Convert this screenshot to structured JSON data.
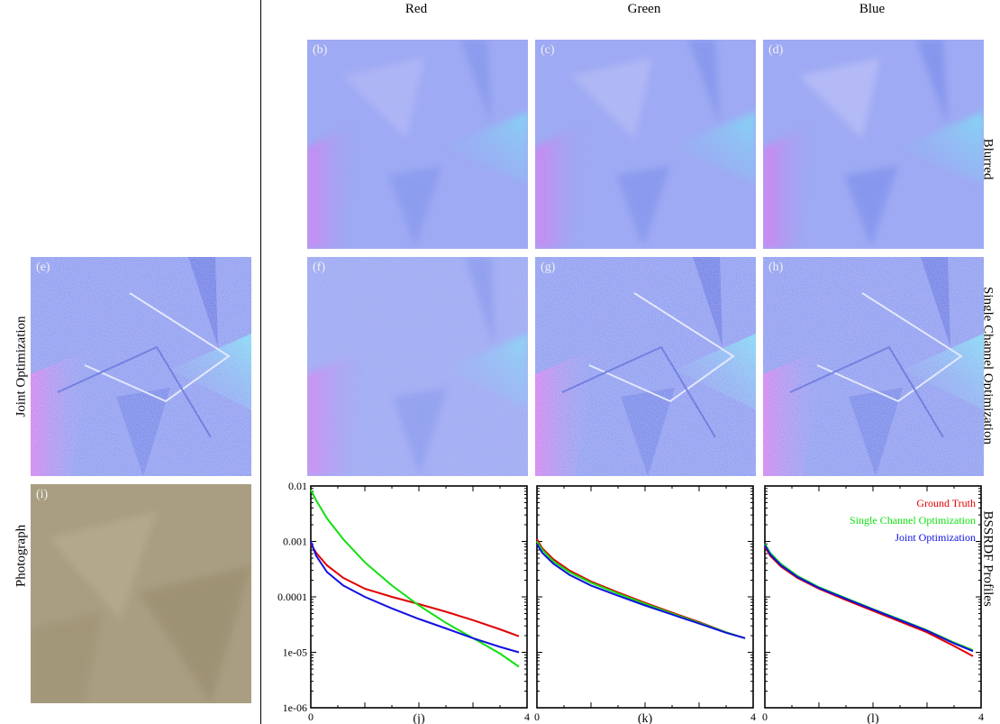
{
  "columns": {
    "red": "Red",
    "green": "Green",
    "blue": "Blue"
  },
  "rows": {
    "blurred": "Blurred",
    "single": "Single Channel Optimization",
    "profiles": "BSSRDF Profiles",
    "joint": "Joint Optimization",
    "photograph": "Photograph"
  },
  "panel_tags": {
    "b": "(b)",
    "c": "(c)",
    "d": "(d)",
    "e": "(e)",
    "f": "(f)",
    "g": "(g)",
    "h": "(h)",
    "i": "(i)",
    "j": "(j)",
    "k": "(k)",
    "l": "(l)"
  },
  "colors": {
    "ground_truth": "#e00000",
    "single": "#10e010",
    "joint": "#1010e0",
    "normal_base": "#9aa8f2",
    "photo_base": "#a89c80"
  },
  "legend": {
    "ground_truth": "Ground Truth",
    "single": "Single Channel Optimization",
    "joint": "Joint Optimization"
  },
  "chart_data": [
    {
      "type": "line",
      "panel": "(j)",
      "yscale": "log",
      "xlim": [
        0,
        4
      ],
      "ylim": [
        1e-06,
        0.01
      ],
      "xticks": [
        "0",
        "4"
      ],
      "yticks": [
        "0.01",
        "0.001",
        "0.0001",
        "1e-05",
        "1e-06"
      ],
      "series": [
        {
          "name": "Ground Truth",
          "color": "#e00000",
          "x": [
            0,
            0.1,
            0.3,
            0.6,
            1.0,
            1.5,
            2.0,
            2.5,
            3.0,
            3.5,
            3.85
          ],
          "y": [
            0.0009,
            0.00062,
            0.00037,
            0.00022,
            0.00014,
            0.0001,
            7.4e-05,
            5.4e-05,
            3.8e-05,
            2.6e-05,
            1.95e-05
          ]
        },
        {
          "name": "Single Channel Optimization",
          "color": "#10e010",
          "x": [
            0,
            0.1,
            0.3,
            0.6,
            1.0,
            1.5,
            2.0,
            2.5,
            3.0,
            3.5,
            3.85
          ],
          "y": [
            0.0085,
            0.0055,
            0.0026,
            0.0011,
            0.00042,
            0.00016,
            7e-05,
            3.4e-05,
            1.8e-05,
            9.5e-06,
            5.5e-06
          ]
        },
        {
          "name": "Joint Optimization",
          "color": "#1010e0",
          "x": [
            0,
            0.1,
            0.3,
            0.6,
            1.0,
            1.5,
            2.0,
            2.5,
            3.0,
            3.5,
            3.85
          ],
          "y": [
            0.001,
            0.00055,
            0.00028,
            0.00016,
            0.0001,
            6.2e-05,
            4e-05,
            2.7e-05,
            1.8e-05,
            1.25e-05,
            1e-05
          ]
        }
      ]
    },
    {
      "type": "line",
      "panel": "(k)",
      "yscale": "log",
      "xlim": [
        0,
        4
      ],
      "ylim": [
        1e-06,
        0.01
      ],
      "xticks": [
        "0",
        "4"
      ],
      "yticks": [],
      "series": [
        {
          "name": "Ground Truth",
          "color": "#e00000",
          "x": [
            0,
            0.1,
            0.3,
            0.6,
            1.0,
            1.5,
            2.0,
            2.5,
            3.0,
            3.5,
            3.85
          ],
          "y": [
            0.0011,
            0.00075,
            0.00048,
            0.0003,
            0.00019,
            0.00012,
            7.8e-05,
            5.2e-05,
            3.5e-05,
            2.3e-05,
            1.8e-05
          ]
        },
        {
          "name": "Single Channel Optimization",
          "color": "#10e010",
          "x": [
            0,
            0.1,
            0.3,
            0.6,
            1.0,
            1.5,
            2.0,
            2.5,
            3.0,
            3.5,
            3.85
          ],
          "y": [
            0.001,
            0.0007,
            0.00044,
            0.00028,
            0.00018,
            0.000115,
            7.5e-05,
            5e-05,
            3.4e-05,
            2.3e-05,
            1.8e-05
          ]
        },
        {
          "name": "Joint Optimization",
          "color": "#1010e0",
          "x": [
            0,
            0.1,
            0.3,
            0.6,
            1.0,
            1.5,
            2.0,
            2.5,
            3.0,
            3.5,
            3.85
          ],
          "y": [
            0.0009,
            0.00062,
            0.0004,
            0.00025,
            0.00016,
            0.000105,
            7e-05,
            4.8e-05,
            3.3e-05,
            2.25e-05,
            1.8e-05
          ]
        }
      ]
    },
    {
      "type": "line",
      "panel": "(l)",
      "yscale": "log",
      "xlim": [
        0,
        4
      ],
      "ylim": [
        1e-06,
        0.01
      ],
      "xticks": [
        "0",
        "4"
      ],
      "yticks": [],
      "legend_position": "top-right",
      "series": [
        {
          "name": "Ground Truth",
          "color": "#e00000",
          "x": [
            0,
            0.1,
            0.3,
            0.6,
            1.0,
            1.5,
            2.0,
            2.5,
            3.0,
            3.5,
            3.85
          ],
          "y": [
            0.0008,
            0.00055,
            0.00035,
            0.00022,
            0.00014,
            8.8e-05,
            5.6e-05,
            3.6e-05,
            2.3e-05,
            1.3e-05,
            8.5e-06
          ]
        },
        {
          "name": "Single Channel Optimization",
          "color": "#10e010",
          "x": [
            0,
            0.1,
            0.3,
            0.6,
            1.0,
            1.5,
            2.0,
            2.5,
            3.0,
            3.5,
            3.85
          ],
          "y": [
            0.0009,
            0.00062,
            0.00039,
            0.00024,
            0.00015,
            9.5e-05,
            6e-05,
            3.9e-05,
            2.5e-05,
            1.5e-05,
            1.1e-05
          ]
        },
        {
          "name": "Joint Optimization",
          "color": "#1010e0",
          "x": [
            0,
            0.1,
            0.3,
            0.6,
            1.0,
            1.5,
            2.0,
            2.5,
            3.0,
            3.5,
            3.85
          ],
          "y": [
            0.00085,
            0.00058,
            0.00037,
            0.00023,
            0.000145,
            9.2e-05,
            5.9e-05,
            3.8e-05,
            2.45e-05,
            1.45e-05,
            1.05e-05
          ]
        }
      ]
    }
  ]
}
